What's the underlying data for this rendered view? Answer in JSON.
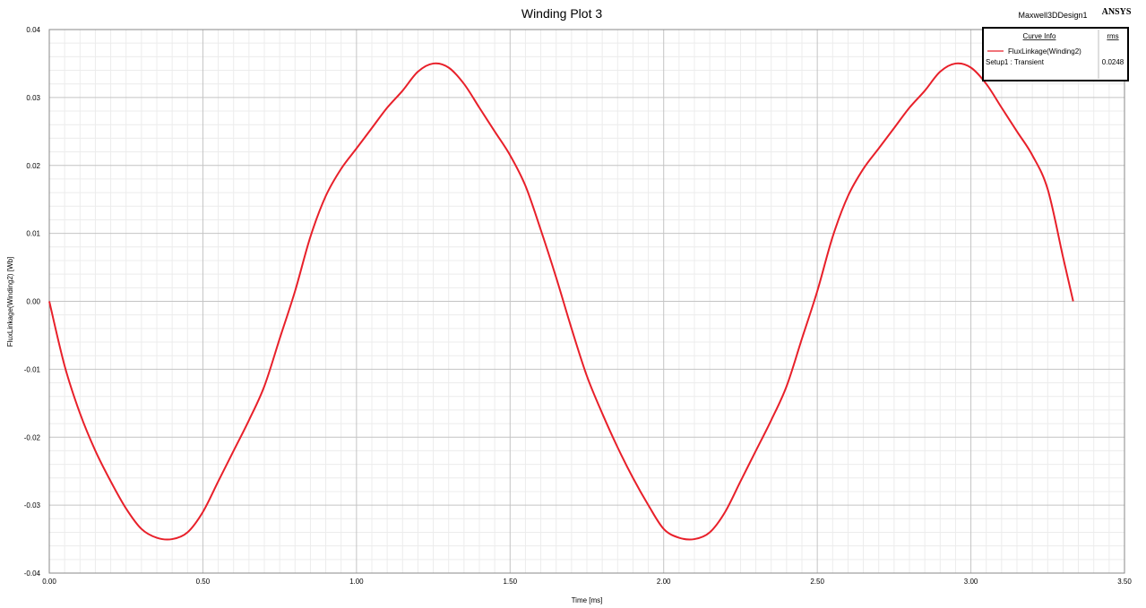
{
  "header": {
    "title": "Winding Plot 3",
    "design_name": "Maxwell3DDesign1",
    "brand": "ANSYS"
  },
  "legend": {
    "header_curve_info": "Curve Info",
    "header_rms": "rms",
    "entries": [
      {
        "name": "FluxLinkage(Winding2)",
        "setup": "Setup1 : Transient",
        "rms": "0.0248",
        "color": "#e8202a"
      }
    ]
  },
  "chart_data": {
    "type": "line",
    "title": "Winding Plot 3",
    "xlabel": "Time [ms]",
    "ylabel": "FluxLinkage(Winding2) [Wb]",
    "xlim": [
      0,
      3.5
    ],
    "ylim": [
      -0.04,
      0.04
    ],
    "x_ticks": [
      "0.00",
      "0.50",
      "1.00",
      "1.50",
      "2.00",
      "2.50",
      "3.00",
      "3.50"
    ],
    "y_ticks": [
      "0.04",
      "0.03",
      "0.02",
      "0.01",
      "0.00",
      "-0.01",
      "-0.02",
      "-0.03",
      "-0.04"
    ],
    "grid": true,
    "legend_position": "top-right",
    "series": [
      {
        "name": "FluxLinkage(Winding2)",
        "color": "#e8202a",
        "x": [
          0.0,
          0.05,
          0.1,
          0.15,
          0.2,
          0.25,
          0.3,
          0.35,
          0.4,
          0.45,
          0.5,
          0.55,
          0.6,
          0.65,
          0.7,
          0.75,
          0.8,
          0.85,
          0.9,
          0.95,
          1.0,
          1.05,
          1.1,
          1.15,
          1.2,
          1.25,
          1.3,
          1.35,
          1.4,
          1.45,
          1.5,
          1.55,
          1.6,
          1.65,
          1.7,
          1.75,
          1.8,
          1.85,
          1.9,
          1.95,
          2.0,
          2.05,
          2.1,
          2.15,
          2.2,
          2.25,
          2.3,
          2.35,
          2.4,
          2.45,
          2.5,
          2.55,
          2.6,
          2.65,
          2.7,
          2.75,
          2.8,
          2.85,
          2.9,
          2.95,
          3.0,
          3.05,
          3.1,
          3.15,
          3.2,
          3.25,
          3.3,
          3.333
        ],
        "values": [
          0.0,
          -0.0095,
          -0.0165,
          -0.022,
          -0.0265,
          -0.0305,
          -0.0335,
          -0.0348,
          -0.035,
          -0.034,
          -0.031,
          -0.0265,
          -0.022,
          -0.0175,
          -0.0125,
          -0.0055,
          0.0015,
          0.0095,
          0.0155,
          0.0195,
          0.0225,
          0.0255,
          0.0285,
          0.031,
          0.0338,
          0.035,
          0.0344,
          0.032,
          0.0285,
          0.025,
          0.0215,
          0.017,
          0.0105,
          0.0035,
          -0.004,
          -0.011,
          -0.0165,
          -0.0215,
          -0.026,
          -0.03,
          -0.0335,
          -0.0348,
          -0.035,
          -0.034,
          -0.031,
          -0.0265,
          -0.022,
          -0.0175,
          -0.0125,
          -0.0055,
          0.0015,
          0.0095,
          0.0155,
          0.0195,
          0.0225,
          0.0255,
          0.0285,
          0.031,
          0.0338,
          0.035,
          0.0344,
          0.032,
          0.0285,
          0.025,
          0.0215,
          0.0165,
          0.0065,
          0.0
        ]
      }
    ]
  }
}
